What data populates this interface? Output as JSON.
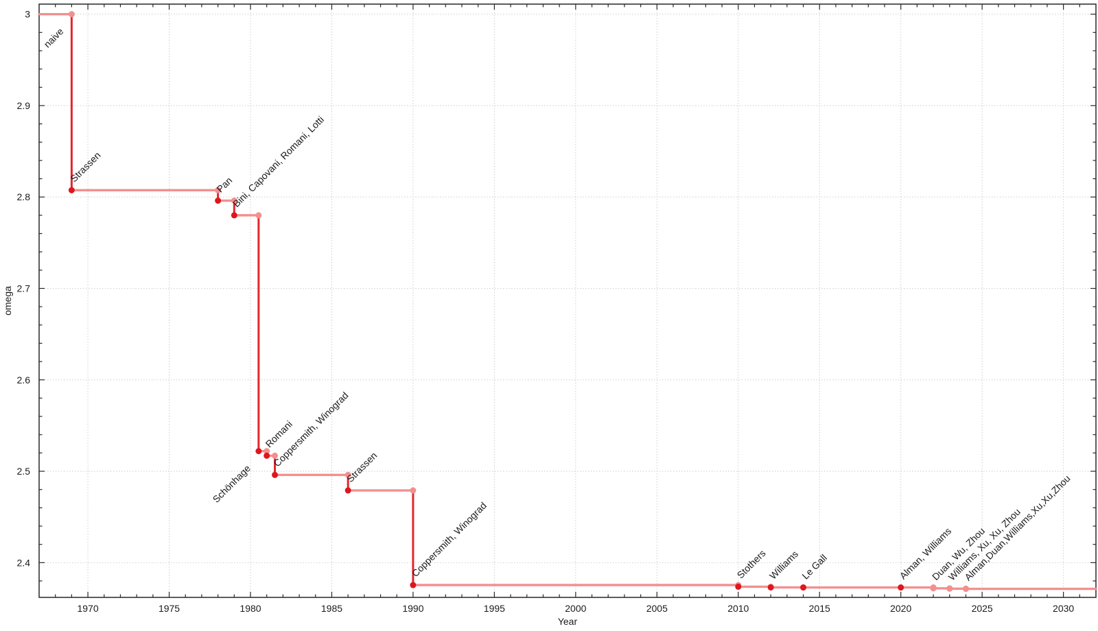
{
  "page": {
    "background": "#ffffff"
  },
  "chart_data": {
    "type": "line",
    "subtype": "step-post-with-markers",
    "title": "",
    "xlabel": "Year",
    "ylabel": "omega",
    "xlim": [
      1967,
      2032
    ],
    "ylim": [
      2.362,
      3.011
    ],
    "grid": {
      "show": true,
      "style": "dotted",
      "color": "#cdcdcd",
      "on": "major-ticks-both-axes"
    },
    "legend": "none",
    "ticks": {
      "direction": "in",
      "sides": [
        "top",
        "bottom",
        "left",
        "right"
      ],
      "x_major": [
        1970,
        1975,
        1980,
        1985,
        1990,
        1995,
        2000,
        2005,
        2010,
        2015,
        2020,
        2025,
        2030
      ],
      "x_tick_labels": [
        "1970",
        "1975",
        "1980",
        "1985",
        "1990",
        "1995",
        "2000",
        "2005",
        "2010",
        "2015",
        "2020",
        "2025",
        "2030"
      ],
      "x_minor_step": 1,
      "y_major": [
        3.0,
        2.9,
        2.8,
        2.7,
        2.6,
        2.5,
        2.4
      ],
      "y_tick_labels": [
        "3",
        "2.9",
        "2.8",
        "2.7",
        "2.6",
        "2.5",
        "2.4"
      ],
      "y_minor_step": 0.02
    },
    "colors": {
      "step_light": "#F2908F",
      "step_dark": "#E3262E",
      "marker_dark": "#DE161E",
      "marker_light": "#F2908F",
      "label": "#1a1a1a",
      "label_muted": "#A3A0A0",
      "grid": "#cdcdcd",
      "axis": "#262626"
    },
    "bounds": [
      {
        "label": "naive",
        "year": null,
        "omega": 3,
        "label_side": "below"
      },
      {
        "label": "Strassen",
        "year": 1969,
        "omega": 2.8074
      },
      {
        "label": "Pan",
        "year": 1978,
        "omega": 2.796
      },
      {
        "label": "Bini, Capovani, Romani, Lotti",
        "year": 1979,
        "omega": 2.78
      },
      {
        "label": "Schönhage",
        "year": 1980.5,
        "omega": 2.522,
        "label_side": "below"
      },
      {
        "label": "Romani",
        "year": 1981,
        "omega": 2.517
      },
      {
        "label": "Coppersmith, Winograd",
        "year": 1981.5,
        "omega": 2.496
      },
      {
        "label": "Strassen",
        "year": 1986,
        "omega": 2.479
      },
      {
        "label": "Coppersmith, Winograd",
        "year": 1990,
        "omega": 2.3755
      },
      {
        "label": "Stothers",
        "year": 2010,
        "omega": 2.3737
      },
      {
        "label": "Williams",
        "year": 2012,
        "omega": 2.3729
      },
      {
        "label": "Le Gall",
        "year": 2014,
        "omega": 2.3728639
      },
      {
        "label": "Alman, Williams",
        "year": 2020,
        "omega": 2.3728596
      },
      {
        "label": "Duan, Wu, Zhou",
        "year": 2022,
        "omega": 2.371866,
        "muted": true
      },
      {
        "label": "Williams, Xu, Xu, Zhou",
        "year": 2023,
        "omega": 2.371552,
        "muted": true
      },
      {
        "label": "Alman,Duan,Williams,Xu,Xu,Zhou",
        "year": 2024,
        "omega": 2.371339,
        "muted": true
      }
    ]
  }
}
